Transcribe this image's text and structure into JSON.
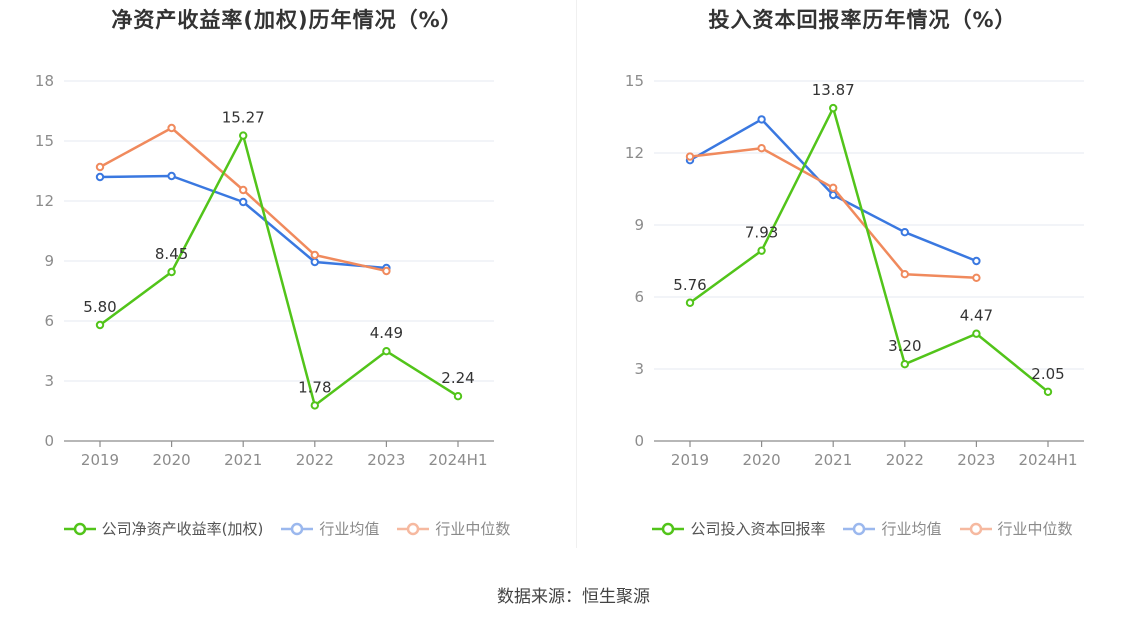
{
  "source_label": "数据来源：恒生聚源",
  "chart_data": [
    {
      "type": "line",
      "title": "净资产收益率(加权)历年情况（%）",
      "categories": [
        "2019",
        "2020",
        "2021",
        "2022",
        "2023",
        "2024H1"
      ],
      "ylim": [
        0,
        18
      ],
      "yticks": [
        0,
        3,
        6,
        9,
        12,
        15,
        18
      ],
      "grid": true,
      "legend_position": "bottom",
      "series": [
        {
          "name": "公司净资产收益率(加权)",
          "color": "#52c41a",
          "values": [
            5.8,
            8.45,
            15.27,
            1.78,
            4.49,
            2.24
          ],
          "labels": [
            "5.80",
            "8.45",
            "15.27",
            "1.78",
            "4.49",
            "2.24"
          ]
        },
        {
          "name": "行业均值",
          "color": "#3a78e0",
          "values": [
            13.2,
            13.25,
            11.95,
            8.95,
            8.65,
            null
          ]
        },
        {
          "name": "行业中位数",
          "color": "#f08a5d",
          "values": [
            13.7,
            15.65,
            12.55,
            9.3,
            8.5,
            null
          ]
        }
      ]
    },
    {
      "type": "line",
      "title": "投入资本回报率历年情况（%）",
      "categories": [
        "2019",
        "2020",
        "2021",
        "2022",
        "2023",
        "2024H1"
      ],
      "ylim": [
        0,
        15
      ],
      "yticks": [
        0,
        3,
        6,
        9,
        12,
        15
      ],
      "grid": true,
      "legend_position": "bottom",
      "series": [
        {
          "name": "公司投入资本回报率",
          "color": "#52c41a",
          "values": [
            5.76,
            7.93,
            13.87,
            3.2,
            4.47,
            2.05
          ],
          "labels": [
            "5.76",
            "7.93",
            "13.87",
            "3.20",
            "4.47",
            "2.05"
          ]
        },
        {
          "name": "行业均值",
          "color": "#3a78e0",
          "values": [
            11.7,
            13.4,
            10.25,
            8.7,
            7.5,
            null
          ]
        },
        {
          "name": "行业中位数",
          "color": "#f08a5d",
          "values": [
            11.85,
            12.2,
            10.55,
            6.95,
            6.8,
            null
          ]
        }
      ]
    }
  ]
}
